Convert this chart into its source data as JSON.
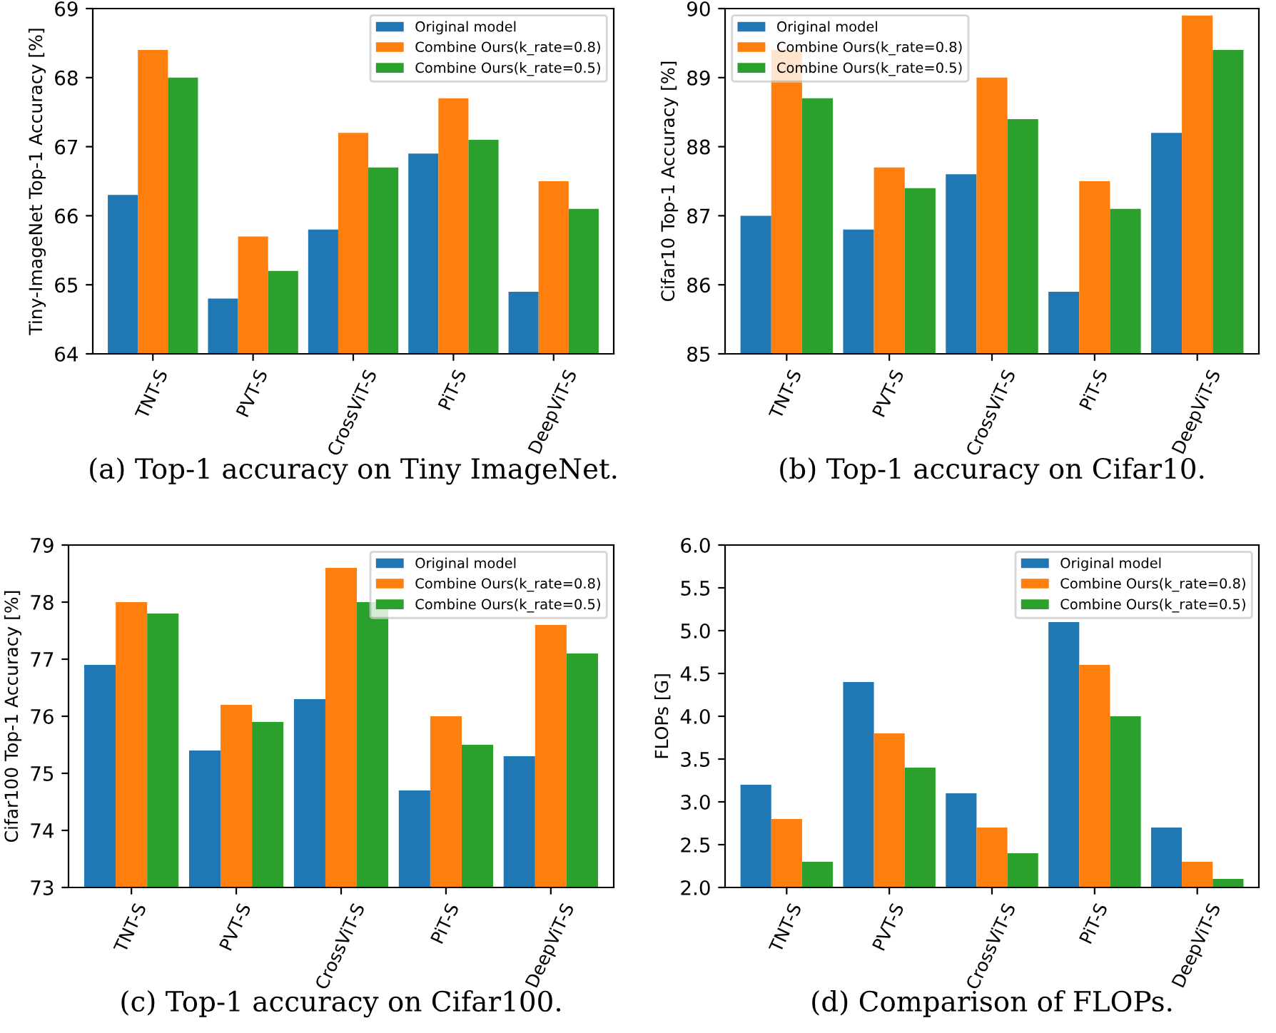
{
  "chart_data": [
    {
      "type": "bar",
      "ylabel": "Tiny-ImageNet Top-1 Accuracy [%]",
      "categories": [
        "TNT-S",
        "PVT-S",
        "CrossViT-S",
        "PiT-S",
        "DeepViT-S"
      ],
      "ylim": [
        64,
        69
      ],
      "yticks": [
        64,
        65,
        66,
        67,
        68,
        69
      ],
      "legend": "top right",
      "annotations": [
        "(a) Top-1 accuracy on Tiny ImageNet."
      ],
      "series": [
        {
          "name": "Original model",
          "color": "#1f77b4",
          "values": [
            66.3,
            64.8,
            65.8,
            66.9,
            64.9
          ]
        },
        {
          "name": "Combine Ours(k_rate=0.8)",
          "color": "#ff7f0e",
          "values": [
            68.4,
            65.7,
            67.2,
            67.7,
            66.5
          ]
        },
        {
          "name": "Combine Ours(k_rate=0.5)",
          "color": "#2ca02c",
          "values": [
            68.0,
            65.2,
            66.7,
            67.1,
            66.1
          ]
        }
      ]
    },
    {
      "type": "bar",
      "ylabel": "Cifar10 Top-1 Accuracy [%]",
      "categories": [
        "TNT-S",
        "PVT-S",
        "CrossViT-S",
        "PiT-S",
        "DeepViT-S"
      ],
      "ylim": [
        85,
        90
      ],
      "yticks": [
        85,
        86,
        87,
        88,
        89,
        90
      ],
      "legend": "top left",
      "annotations": [
        "(b) Top-1 accuracy on Cifar10."
      ],
      "series": [
        {
          "name": "Original model",
          "color": "#1f77b4",
          "values": [
            87.0,
            86.8,
            87.6,
            85.9,
            88.2
          ]
        },
        {
          "name": "Combine Ours(k_rate=0.8)",
          "color": "#ff7f0e",
          "values": [
            89.4,
            87.7,
            89.0,
            87.5,
            89.9
          ]
        },
        {
          "name": "Combine Ours(k_rate=0.5)",
          "color": "#2ca02c",
          "values": [
            88.7,
            87.4,
            88.4,
            87.1,
            89.4
          ]
        }
      ]
    },
    {
      "type": "bar",
      "ylabel": "Cifar100 Top-1 Accuracy [%]",
      "categories": [
        "TNT-S",
        "PVT-S",
        "CrossViT-S",
        "PiT-S",
        "DeepViT-S"
      ],
      "ylim": [
        73,
        79
      ],
      "yticks": [
        73,
        74,
        75,
        76,
        77,
        78,
        79
      ],
      "legend": "top right",
      "annotations": [
        "(c) Top-1 accuracy on Cifar100."
      ],
      "series": [
        {
          "name": "Original model",
          "color": "#1f77b4",
          "values": [
            76.9,
            75.4,
            76.3,
            74.7,
            75.3
          ]
        },
        {
          "name": "Combine Ours(k_rate=0.8)",
          "color": "#ff7f0e",
          "values": [
            78.0,
            76.2,
            78.6,
            76.0,
            77.6
          ]
        },
        {
          "name": "Combine Ours(k_rate=0.5)",
          "color": "#2ca02c",
          "values": [
            77.8,
            75.9,
            78.0,
            75.5,
            77.1
          ]
        }
      ]
    },
    {
      "type": "bar",
      "ylabel": "FLOPs [G]",
      "categories": [
        "TNT-S",
        "PVT-S",
        "CrossViT-S",
        "PiT-S",
        "DeepViT-S"
      ],
      "ylim": [
        2.0,
        6.0
      ],
      "yticks": [
        {
          "value": 2.0,
          "label": "2.0"
        },
        2.5,
        {
          "value": 3.0,
          "label": "3.0"
        },
        3.5,
        {
          "value": 4.0,
          "label": "4.0"
        },
        4.5,
        {
          "value": 5.0,
          "label": "5.0"
        },
        5.5,
        {
          "value": 6.0,
          "label": "6.0"
        }
      ],
      "legend": "top right",
      "annotations": [
        "(d) Comparison of FLOPs."
      ],
      "series": [
        {
          "name": "Original model",
          "color": "#1f77b4",
          "values": [
            3.2,
            4.4,
            3.1,
            5.1,
            2.7
          ]
        },
        {
          "name": "Combine Ours(k_rate=0.8)",
          "color": "#ff7f0e",
          "values": [
            2.8,
            3.8,
            2.7,
            4.6,
            2.3
          ]
        },
        {
          "name": "Combine Ours(k_rate=0.5)",
          "color": "#2ca02c",
          "values": [
            2.3,
            3.4,
            2.4,
            4.0,
            2.1
          ]
        }
      ]
    }
  ]
}
